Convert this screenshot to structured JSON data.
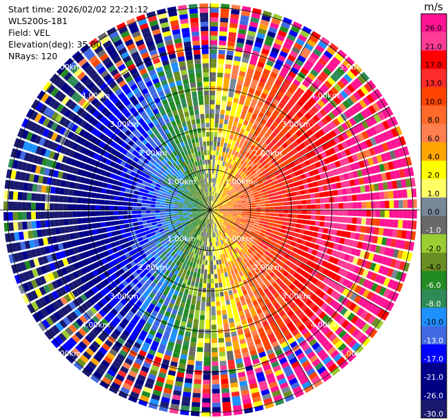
{
  "header": {
    "start_time": "Start time: 2026/02/02 22:21:12",
    "instrument": "WLS200s-181",
    "field": "Field: VEL",
    "elevation": "Elevation(deg): 35.00",
    "nrays": "NRays: 120"
  },
  "chart_data": {
    "type": "heatmap",
    "projection": "polar-ppi",
    "field": "VEL",
    "units": "m/s",
    "elevation_deg": 35.0,
    "nrays": 120,
    "range_rings_km": [
      1.0,
      2.0,
      3.0,
      4.0,
      5.0
    ],
    "ring_labels": [
      "1.00km",
      "2.00km",
      "3.00km",
      "4.00km",
      "5.00km"
    ],
    "max_range_km": 5.1,
    "spokes_deg": [
      0,
      30,
      60,
      90,
      120,
      150,
      180,
      210,
      240,
      270,
      300,
      330
    ],
    "colorbar": {
      "label": "m/s",
      "ticks": [
        "26.0",
        "21.0",
        "17.0",
        "13.0",
        "10.0",
        "8.0",
        "6.0",
        "4.0",
        "2.0",
        "1.0",
        "0.0",
        "-1.0",
        "-2.0",
        "-4.0",
        "-6.0",
        "-8.0",
        "-10.0",
        "-13.0",
        "-17.0",
        "-21.0",
        "-26.0",
        "-30.0"
      ],
      "bins": [
        {
          "color": "#ff1493"
        },
        {
          "color": "#ff3c96"
        },
        {
          "color": "#ff0000"
        },
        {
          "color": "#ff2a2a"
        },
        {
          "color": "#ff4500"
        },
        {
          "color": "#ff6a2a"
        },
        {
          "color": "#ff7f50"
        },
        {
          "color": "#ffa500"
        },
        {
          "color": "#ffff00"
        },
        {
          "color": "#ffff66"
        },
        {
          "color": "#778899"
        },
        {
          "color": "#696969"
        },
        {
          "color": "#9acd32"
        },
        {
          "color": "#6b8e23"
        },
        {
          "color": "#228b22"
        },
        {
          "color": "#2e8b57"
        },
        {
          "color": "#1e90ff"
        },
        {
          "color": "#4169e1"
        },
        {
          "color": "#0000ff"
        },
        {
          "color": "#00008b"
        },
        {
          "color": "#000080"
        },
        {
          "color": "#191970"
        }
      ]
    },
    "wind_pattern": {
      "description_values": "radial velocity dipole; positive (receding) to the east, negative (approaching) to the west",
      "max_abs_velocity": 26.0
    }
  }
}
